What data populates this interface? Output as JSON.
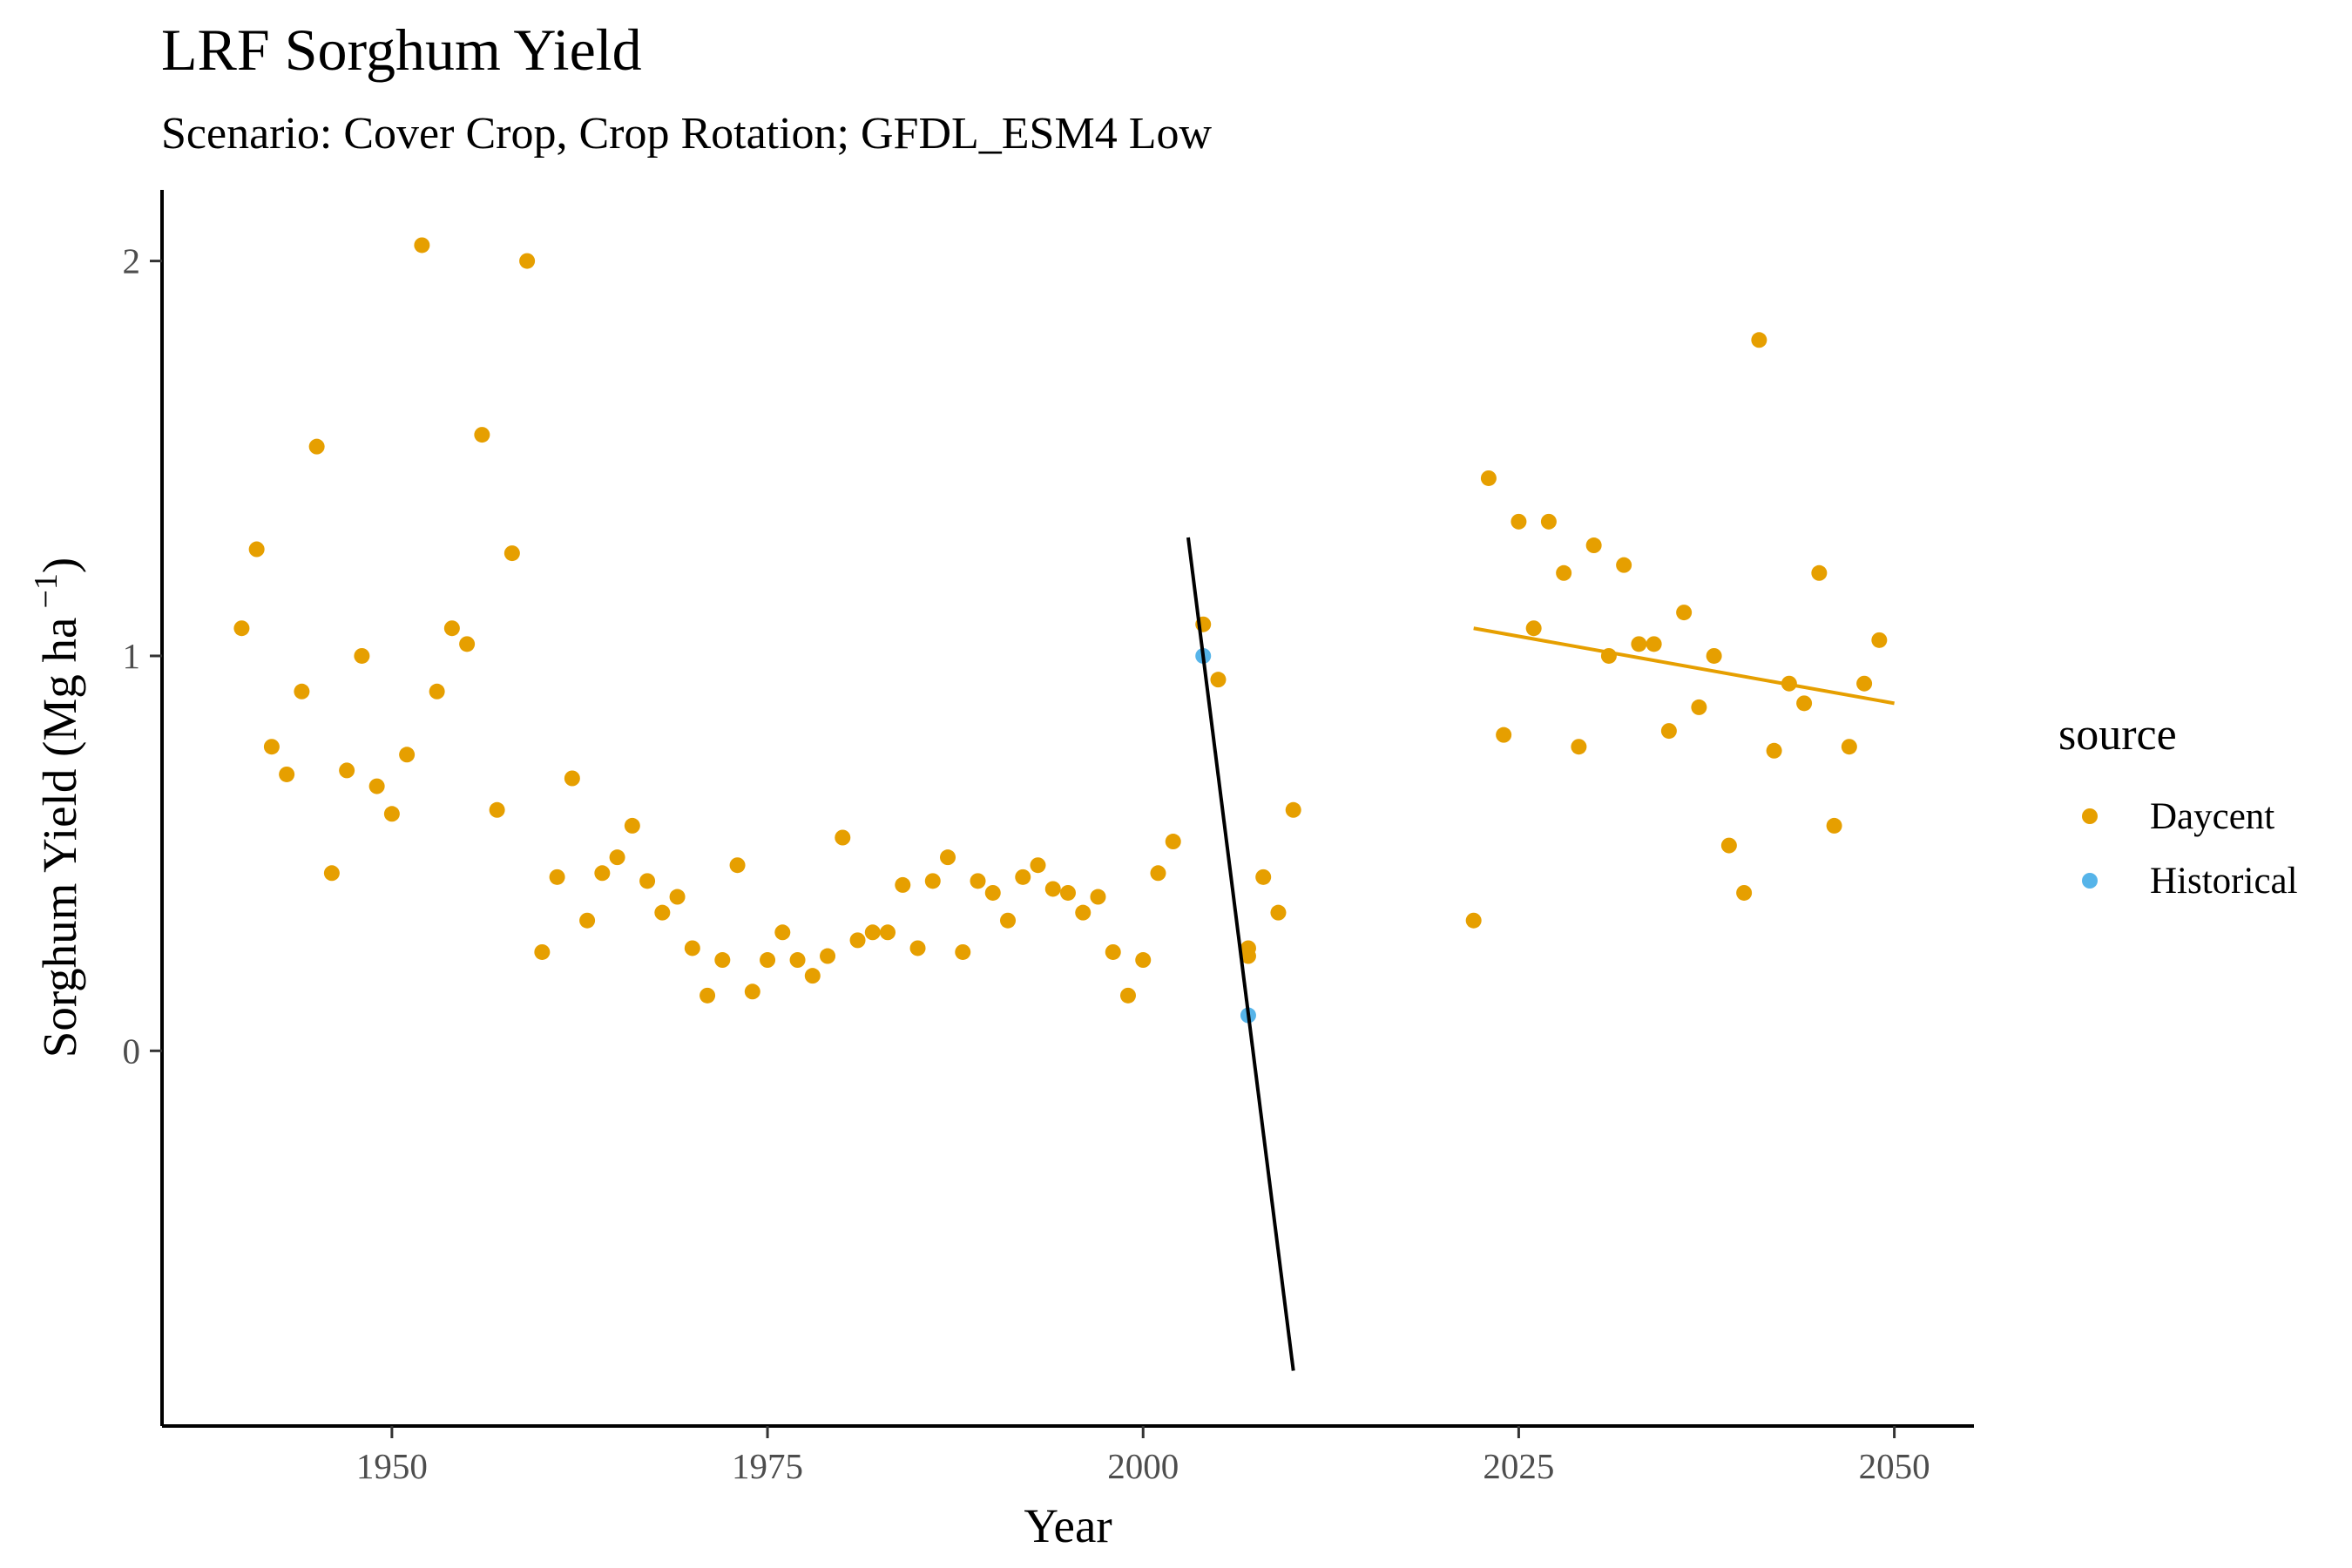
{
  "chart_data": {
    "type": "scatter",
    "title": "LRF Sorghum Yield",
    "subtitle": "Scenario: Cover Crop, Crop Rotation; GFDL_ESM4 Low",
    "xlabel": "Year",
    "ylabel": "Sorghum Yield (Mg ha",
    "ylabel_superscript": "−1",
    "ylabel_close": ")",
    "xlim": [
      1934.7,
      2055.3
    ],
    "ylim": [
      -0.95,
      2.18
    ],
    "x_ticks": [
      1950,
      1975,
      2000,
      2025,
      2050
    ],
    "y_ticks": [
      0,
      1,
      2
    ],
    "grid": false,
    "legend": {
      "title": "source",
      "position": "right",
      "entries": [
        {
          "label": "Daycent",
          "color": "#E69F00"
        },
        {
          "label": "Historical",
          "color": "#56B4E9"
        }
      ]
    },
    "series": [
      {
        "name": "Daycent",
        "color": "#E69F00",
        "points": [
          [
            1940,
            1.07
          ],
          [
            1941,
            1.27
          ],
          [
            1942,
            0.77
          ],
          [
            1943,
            0.7
          ],
          [
            1944,
            0.91
          ],
          [
            1945,
            1.53
          ],
          [
            1946,
            0.45
          ],
          [
            1947,
            0.71
          ],
          [
            1948,
            1.0
          ],
          [
            1949,
            0.67
          ],
          [
            1950,
            0.6
          ],
          [
            1951,
            0.75
          ],
          [
            1952,
            2.04
          ],
          [
            1953,
            0.91
          ],
          [
            1954,
            1.07
          ],
          [
            1955,
            1.03
          ],
          [
            1956,
            1.56
          ],
          [
            1957,
            0.61
          ],
          [
            1958,
            1.26
          ],
          [
            1959,
            2.0
          ],
          [
            1960,
            0.25
          ],
          [
            1961,
            0.44
          ],
          [
            1962,
            0.69
          ],
          [
            1963,
            0.33
          ],
          [
            1964,
            0.45
          ],
          [
            1965,
            0.49
          ],
          [
            1966,
            0.57
          ],
          [
            1967,
            0.43
          ],
          [
            1968,
            0.35
          ],
          [
            1969,
            0.39
          ],
          [
            1970,
            0.26
          ],
          [
            1971,
            0.14
          ],
          [
            1972,
            0.23
          ],
          [
            1973,
            0.47
          ],
          [
            1974,
            0.15
          ],
          [
            1975,
            0.23
          ],
          [
            1976,
            0.3
          ],
          [
            1977,
            0.23
          ],
          [
            1978,
            0.19
          ],
          [
            1979,
            0.24
          ],
          [
            1980,
            0.54
          ],
          [
            1981,
            0.28
          ],
          [
            1982,
            0.3
          ],
          [
            1983,
            0.3
          ],
          [
            1984,
            0.42
          ],
          [
            1985,
            0.26
          ],
          [
            1986,
            0.43
          ],
          [
            1987,
            0.49
          ],
          [
            1988,
            0.25
          ],
          [
            1989,
            0.43
          ],
          [
            1990,
            0.4
          ],
          [
            1991,
            0.33
          ],
          [
            1992,
            0.44
          ],
          [
            1993,
            0.47
          ],
          [
            1994,
            0.41
          ],
          [
            1995,
            0.4
          ],
          [
            1996,
            0.35
          ],
          [
            1997,
            0.39
          ],
          [
            1998,
            0.25
          ],
          [
            1999,
            0.14
          ],
          [
            2000,
            0.23
          ],
          [
            2001,
            0.45
          ],
          [
            2002,
            0.53
          ],
          [
            2004,
            1.08
          ],
          [
            2005,
            0.94
          ],
          [
            2007,
            0.26
          ],
          [
            2007,
            0.24
          ],
          [
            2008,
            0.44
          ],
          [
            2009,
            0.35
          ],
          [
            2010,
            0.61
          ],
          [
            2022,
            0.33
          ],
          [
            2023,
            1.45
          ],
          [
            2024,
            0.8
          ],
          [
            2025,
            1.34
          ],
          [
            2026,
            1.07
          ],
          [
            2027,
            1.34
          ],
          [
            2028,
            1.21
          ],
          [
            2029,
            0.77
          ],
          [
            2030,
            1.28
          ],
          [
            2031,
            1.0
          ],
          [
            2032,
            1.23
          ],
          [
            2033,
            1.03
          ],
          [
            2034,
            1.03
          ],
          [
            2035,
            0.81
          ],
          [
            2036,
            1.11
          ],
          [
            2037,
            0.87
          ],
          [
            2038,
            1.0
          ],
          [
            2039,
            0.52
          ],
          [
            2040,
            0.4
          ],
          [
            2041,
            1.8
          ],
          [
            2042,
            0.76
          ],
          [
            2043,
            0.93
          ],
          [
            2044,
            0.88
          ],
          [
            2045,
            1.21
          ],
          [
            2046,
            0.57
          ],
          [
            2047,
            0.77
          ],
          [
            2048,
            0.93
          ],
          [
            2049,
            1.04
          ]
        ]
      },
      {
        "name": "Historical",
        "color": "#56B4E9",
        "points": [
          [
            2004,
            1.0
          ],
          [
            2007,
            0.09
          ]
        ]
      }
    ],
    "trend_lines": [
      {
        "color": "#000000",
        "x": [
          2003,
          2010
        ],
        "y": [
          1.3,
          -0.81
        ]
      },
      {
        "color": "#E69F00",
        "x": [
          2022,
          2050
        ],
        "y": [
          1.07,
          0.88
        ]
      }
    ]
  }
}
